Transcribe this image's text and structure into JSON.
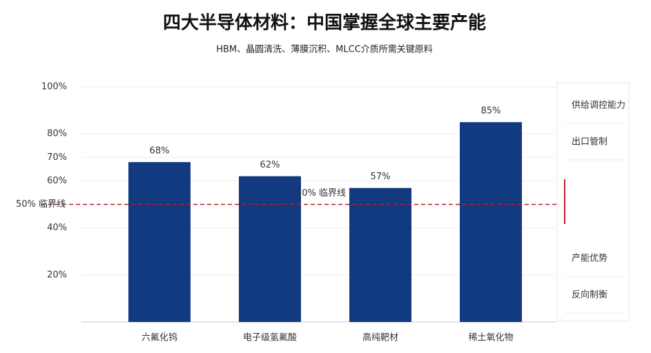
{
  "chart_data": {
    "type": "bar",
    "title": "四大半导体材料：中国掌握全球主要产能",
    "subtitle": "HBM、晶圆清洗、薄膜沉积、MLCC介质所需关键原料",
    "categories": [
      "六氟化钨",
      "电子级氢氟酸",
      "高纯靶材",
      "稀土氧化物"
    ],
    "values": [
      68,
      62,
      57,
      85
    ],
    "value_labels": [
      "68%",
      "62%",
      "57%",
      "85%"
    ],
    "color": "#123a80",
    "ylim": [
      0,
      100
    ],
    "yticks": [
      {
        "value": 20,
        "label": "20%"
      },
      {
        "value": 40,
        "label": "40%"
      },
      {
        "value": 60,
        "label": "60%"
      },
      {
        "value": 70,
        "label": "70%"
      },
      {
        "value": 80,
        "label": "80%"
      },
      {
        "value": 100,
        "label": "100%"
      }
    ],
    "grid": true,
    "reference_line": {
      "value": 50,
      "label": "50% 临界线",
      "color": "#c0182a"
    },
    "side_panel": [
      "供给调控能力",
      "出口管制",
      "产能优势",
      "反向制衡"
    ]
  }
}
